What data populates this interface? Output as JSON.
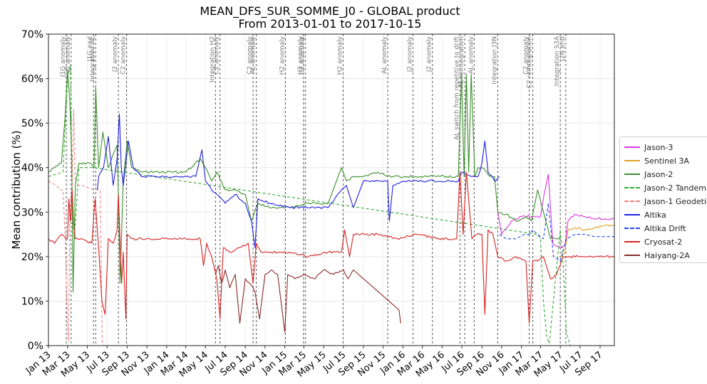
{
  "chart_data": {
    "type": "line",
    "title": "MEAN_DFS_SUR_SOMME_J0 - GLOBAL product",
    "subtitle": "From 2013-01-01 to 2017-10-15",
    "ylabel": "Mean contribution (%)",
    "xlabel": "",
    "ylim": [
      0,
      70
    ],
    "yticks": [
      "0%",
      "10%",
      "20%",
      "30%",
      "40%",
      "50%",
      "60%",
      "70%"
    ],
    "xticks": [
      "Jan 13",
      "Mar 13",
      "May 13",
      "Jul 13",
      "Sep 13",
      "Nov 13",
      "Jan 14",
      "Mar 14",
      "May 14",
      "Jul 14",
      "Sep 14",
      "Nov 14",
      "Jan 15",
      "Mar 15",
      "May 15",
      "Jul 15",
      "Sep 15",
      "Nov 15",
      "Jan 16",
      "Mar 16",
      "May 16",
      "Jul 16",
      "Sep 16",
      "Nov 16",
      "Jan 17",
      "Mar 17",
      "May 17",
      "Jul 17",
      "Sep 17"
    ],
    "xtick_dates": [
      "2013-01-01",
      "2013-03-01",
      "2013-05-01",
      "2013-07-01",
      "2013-09-01",
      "2013-11-01",
      "2014-01-01",
      "2014-03-01",
      "2014-05-01",
      "2014-07-01",
      "2014-09-01",
      "2014-11-01",
      "2015-01-01",
      "2015-03-01",
      "2015-05-01",
      "2015-07-01",
      "2015-09-01",
      "2015-11-01",
      "2016-01-01",
      "2016-03-01",
      "2016-05-01",
      "2016-07-01",
      "2016-09-01",
      "2016-11-01",
      "2017-01-01",
      "2017-03-01",
      "2017-05-01",
      "2017-07-01",
      "2017-09-01"
    ],
    "xlim": [
      "2013-01-01",
      "2017-10-15"
    ],
    "grid": true,
    "legend_position": "right, outside",
    "events": [
      {
        "date": "2013-02-25",
        "label": "J1G anomaly"
      },
      {
        "date": "2013-03-12",
        "label": "J2 anomaly"
      },
      {
        "date": "2013-05-20",
        "label": "J1G end"
      },
      {
        "date": "2013-05-27",
        "label": "Integration AL"
      },
      {
        "date": "2013-08-05",
        "label": "J2 anomaly"
      },
      {
        "date": "2013-08-30",
        "label": "C2 anomaly"
      },
      {
        "date": "2014-06-01",
        "label": "Integration H2"
      },
      {
        "date": "2014-06-15",
        "label": "C2 anomaly"
      },
      {
        "date": "2014-09-25",
        "label": "C2 anomaly"
      },
      {
        "date": "2014-10-05",
        "label": "AL anomaly"
      },
      {
        "date": "2015-01-03",
        "label": "H2 anomaly"
      },
      {
        "date": "2015-02-28",
        "label": "H2 anomaly"
      },
      {
        "date": "2015-03-06",
        "label": "H2 anomaly"
      },
      {
        "date": "2015-06-30",
        "label": "H2 anomaly"
      },
      {
        "date": "2015-11-15",
        "label": "AL anomaly"
      },
      {
        "date": "2016-02-01",
        "label": "J2 anomaly"
      },
      {
        "date": "2016-04-01",
        "label": "J2 anomaly"
      },
      {
        "date": "2016-06-25",
        "label": "AL switch from repetitive to drift"
      },
      {
        "date": "2016-07-10",
        "label": "AL reintegration"
      },
      {
        "date": "2016-08-08",
        "label": "AL anomaly"
      },
      {
        "date": "2016-10-20",
        "label": "Integration J3N"
      },
      {
        "date": "2017-01-25",
        "label": "C2 anomaly"
      },
      {
        "date": "2017-02-05",
        "label": "C2 reintegration"
      },
      {
        "date": "2017-05-01",
        "label": "Integration S3A"
      },
      {
        "date": "2017-05-18",
        "label": "J2N end"
      }
    ],
    "series": [
      {
        "name": "Jason-3",
        "color": "#e033e0",
        "dash": false,
        "x": [
          "2016-10-20",
          "2016-11-01",
          "2016-12-01",
          "2017-01-01",
          "2017-02-01",
          "2017-03-01",
          "2017-03-12",
          "2017-03-25",
          "2017-04-08",
          "2017-05-01",
          "2017-05-15",
          "2017-05-25",
          "2017-06-15",
          "2017-07-15",
          "2017-08-15",
          "2017-09-15",
          "2017-10-15"
        ],
        "y": [
          30,
          25,
          28,
          29,
          29,
          29,
          34,
          38.5,
          23,
          22,
          22.5,
          28,
          29.5,
          29,
          28.5,
          28.5,
          28.5
        ]
      },
      {
        "name": "Sentinel 3A",
        "color": "#e0a020",
        "dash": false,
        "x": [
          "2017-05-01",
          "2017-05-15",
          "2017-05-25",
          "2017-06-15",
          "2017-07-15",
          "2017-08-15",
          "2017-09-15",
          "2017-10-15"
        ],
        "y": [
          20,
          21,
          26,
          26.5,
          26,
          26.5,
          27,
          27
        ]
      },
      {
        "name": "Jason-2",
        "color": "#3a8f2a",
        "dash": false,
        "x": [
          "2013-01-01",
          "2013-01-20",
          "2013-02-10",
          "2013-02-22",
          "2013-03-01",
          "2013-03-08",
          "2013-03-14",
          "2013-03-18",
          "2013-03-25",
          "2013-04-05",
          "2013-05-10",
          "2013-05-22",
          "2013-05-27",
          "2013-06-05",
          "2013-06-18",
          "2013-07-05",
          "2013-07-20",
          "2013-08-01",
          "2013-08-05",
          "2013-08-10",
          "2013-08-20",
          "2013-09-01",
          "2013-09-15",
          "2013-10-15",
          "2013-12-15",
          "2014-03-01",
          "2014-04-15",
          "2014-05-01",
          "2014-05-20",
          "2014-06-05",
          "2014-07-01",
          "2014-08-01",
          "2014-09-01",
          "2014-09-20",
          "2014-10-10",
          "2014-11-15",
          "2015-01-15",
          "2015-03-15",
          "2015-05-15",
          "2015-06-25",
          "2015-07-10",
          "2015-08-01",
          "2015-09-01",
          "2015-10-15",
          "2015-11-15",
          "2016-01-15",
          "2016-03-15",
          "2016-05-15",
          "2016-06-20",
          "2016-06-30",
          "2016-07-08",
          "2016-07-15",
          "2016-07-22",
          "2016-07-30",
          "2016-08-10",
          "2016-08-20",
          "2016-09-01",
          "2016-09-15",
          "2016-09-25",
          "2016-10-10",
          "2016-10-20",
          "2016-11-15",
          "2016-12-15",
          "2017-01-15",
          "2017-02-01",
          "2017-02-20",
          "2017-03-10",
          "2017-04-01",
          "2017-05-01"
        ],
        "y": [
          39,
          40,
          41,
          52,
          62,
          55,
          42,
          12,
          36,
          41,
          41,
          40,
          58,
          40,
          48,
          40,
          43,
          45,
          34,
          14,
          37,
          46,
          40,
          39,
          39,
          39,
          42,
          40,
          37,
          39,
          35,
          35,
          34,
          28,
          32,
          31,
          31,
          32,
          32,
          40,
          37,
          38,
          38,
          39,
          38,
          38,
          38,
          38,
          38,
          61,
          38,
          61,
          39,
          61,
          38,
          40,
          40,
          39,
          38,
          38,
          30,
          29.5,
          28,
          29,
          28,
          35,
          30,
          24,
          24
        ]
      },
      {
        "name": "Jason-2 Tandem",
        "color": "#33aa33",
        "dash": true,
        "x": [
          "2013-01-01",
          "2013-02-15",
          "2013-03-01",
          "2013-03-10",
          "2013-03-16",
          "2013-03-22",
          "2013-04-05",
          "2013-05-20",
          "2017-02-20",
          "2017-03-01",
          "2017-03-10",
          "2017-03-20",
          "2017-03-28",
          "2017-05-01",
          "2017-05-10",
          "2017-05-20",
          "2017-06-01"
        ],
        "y": [
          38,
          39,
          60,
          63,
          30,
          24,
          40,
          40,
          25,
          24,
          10,
          2,
          0.5,
          26,
          18,
          3,
          0
        ]
      },
      {
        "name": "Jason-1 Geodetic",
        "color": "#f08080",
        "dash": true,
        "x": [
          "2013-01-01",
          "2013-01-25",
          "2013-02-05",
          "2013-02-15",
          "2013-02-22",
          "2013-02-28",
          "2013-03-04",
          "2013-03-08",
          "2013-03-15",
          "2013-03-20",
          "2013-03-25",
          "2013-04-15",
          "2013-05-20",
          "2013-06-10",
          "2013-06-16",
          "2013-06-22"
        ],
        "y": [
          37,
          36,
          35,
          35,
          24,
          6,
          1,
          30,
          36,
          53,
          36,
          36,
          35,
          35,
          1,
          0
        ]
      },
      {
        "name": "Altika",
        "color": "#1f1fe0",
        "dash": false,
        "x": [
          "2013-06-01",
          "2013-06-05",
          "2013-06-20",
          "2013-07-05",
          "2013-07-20",
          "2013-08-01",
          "2013-08-08",
          "2013-08-14",
          "2013-08-20",
          "2013-09-05",
          "2013-09-20",
          "2013-10-15",
          "2013-12-15",
          "2014-02-15",
          "2014-04-01",
          "2014-04-20",
          "2014-05-01",
          "2014-05-20",
          "2014-06-05",
          "2014-07-01",
          "2014-08-01",
          "2014-09-01",
          "2014-09-20",
          "2014-10-01",
          "2014-10-10",
          "2014-11-15",
          "2015-01-15",
          "2015-03-15",
          "2015-05-15",
          "2015-06-25",
          "2015-07-10",
          "2015-08-01",
          "2015-09-01",
          "2015-10-15",
          "2015-11-15",
          "2015-11-20",
          "2015-12-01",
          "2016-01-15",
          "2016-03-15",
          "2016-05-15",
          "2016-06-20",
          "2016-07-01",
          "2016-08-01",
          "2016-08-20",
          "2016-09-01",
          "2016-09-10",
          "2016-09-20",
          "2016-10-10",
          "2016-10-25"
        ],
        "y": [
          35,
          38,
          40,
          47,
          36,
          42,
          52,
          40,
          36,
          46,
          40,
          38,
          38,
          38,
          38,
          44,
          37,
          35,
          34,
          32,
          34,
          32,
          28,
          22,
          33,
          32,
          31,
          31,
          31,
          35,
          36,
          31,
          37,
          37,
          37,
          28,
          36,
          37,
          37,
          37,
          37,
          39,
          38,
          38,
          41,
          46,
          39,
          37,
          38
        ]
      },
      {
        "name": "Altika Drift",
        "color": "#2244ee",
        "dash": true,
        "x": [
          "2016-10-25",
          "2016-11-15",
          "2016-12-15",
          "2017-01-10",
          "2017-01-25",
          "2017-02-05",
          "2017-02-20",
          "2017-03-10",
          "2017-03-25",
          "2017-04-10",
          "2017-05-01",
          "2017-05-20",
          "2017-06-15",
          "2017-07-15",
          "2017-08-15",
          "2017-09-15",
          "2017-10-15"
        ],
        "y": [
          25,
          24,
          24,
          25,
          25,
          26,
          25,
          24,
          32,
          20,
          19,
          24,
          25,
          25,
          24.5,
          24.5,
          24.5
        ]
      },
      {
        "name": "Cryosat-2",
        "color": "#d62222",
        "dash": false,
        "x": [
          "2013-01-01",
          "2013-01-20",
          "2013-02-10",
          "2013-02-25",
          "2013-03-01",
          "2013-03-05",
          "2013-03-10",
          "2013-03-15",
          "2013-03-20",
          "2013-03-25",
          "2013-04-10",
          "2013-05-15",
          "2013-05-25",
          "2013-06-05",
          "2013-06-15",
          "2013-06-25",
          "2013-07-05",
          "2013-07-20",
          "2013-08-01",
          "2013-08-05",
          "2013-08-10",
          "2013-08-15",
          "2013-08-20",
          "2013-08-28",
          "2013-09-01",
          "2013-09-15",
          "2013-10-15",
          "2013-12-15",
          "2014-02-15",
          "2014-04-15",
          "2014-04-25",
          "2014-05-05",
          "2014-05-20",
          "2014-06-05",
          "2014-06-15",
          "2014-06-25",
          "2014-07-15",
          "2014-08-15",
          "2014-09-10",
          "2014-09-25",
          "2014-10-05",
          "2014-10-20",
          "2014-11-15",
          "2015-01-15",
          "2015-03-15",
          "2015-05-15",
          "2015-06-25",
          "2015-07-05",
          "2015-07-20",
          "2015-08-01",
          "2015-10-15",
          "2015-12-15",
          "2016-02-15",
          "2016-04-15",
          "2016-06-15",
          "2016-06-25",
          "2016-07-05",
          "2016-07-15",
          "2016-08-01",
          "2016-08-15",
          "2016-09-01",
          "2016-09-10",
          "2016-09-20",
          "2016-10-05",
          "2016-10-20",
          "2016-11-15",
          "2016-12-15",
          "2017-01-15",
          "2017-01-25",
          "2017-02-05",
          "2017-02-20",
          "2017-03-10",
          "2017-04-01",
          "2017-04-20",
          "2017-05-10",
          "2017-06-01",
          "2017-07-15",
          "2017-08-15",
          "2017-09-15",
          "2017-10-15"
        ],
        "y": [
          24,
          23,
          25,
          24,
          24,
          33,
          28,
          35,
          27,
          24,
          24,
          23,
          33,
          22,
          10,
          7,
          24,
          23,
          26,
          34,
          24,
          14,
          21,
          6,
          25,
          24,
          24,
          24,
          24,
          24,
          18,
          23,
          20,
          15,
          6,
          22,
          21,
          22,
          23,
          14,
          23,
          21,
          21,
          21,
          20,
          21,
          21,
          26,
          20,
          25,
          25,
          24,
          25,
          24,
          24,
          39,
          25,
          39,
          24,
          25,
          25,
          7,
          26,
          25,
          20,
          19,
          20,
          19,
          5,
          19,
          19,
          20,
          15,
          16,
          20,
          20,
          20,
          20,
          20,
          20
        ]
      },
      {
        "name": "Haiyang-2A",
        "color": "#8b2a2a",
        "dash": false,
        "x": [
          "2014-06-01",
          "2014-06-10",
          "2014-06-20",
          "2014-07-01",
          "2014-07-15",
          "2014-08-01",
          "2014-08-15",
          "2014-09-01",
          "2014-09-15",
          "2014-10-01",
          "2014-10-15",
          "2014-11-01",
          "2014-11-20",
          "2014-12-10",
          "2015-01-01",
          "2015-01-10",
          "2015-02-01",
          "2015-03-01",
          "2015-04-01",
          "2015-05-01",
          "2015-06-01",
          "2015-07-01",
          "2015-07-15",
          "2015-08-01",
          "2015-12-20",
          "2015-12-25"
        ],
        "y": [
          16,
          18,
          14,
          17,
          13,
          16,
          5,
          15,
          14,
          12,
          6,
          16,
          17,
          16,
          3,
          16,
          15,
          16,
          15,
          17,
          16,
          17,
          15,
          17,
          8,
          5
        ]
      }
    ]
  }
}
